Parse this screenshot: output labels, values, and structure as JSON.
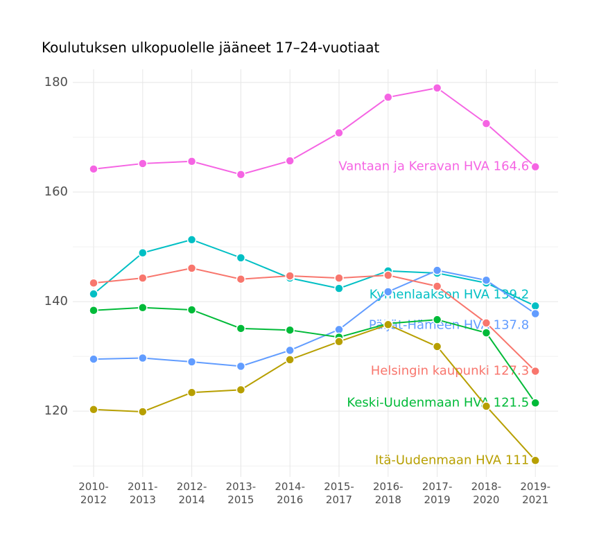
{
  "chart_data": {
    "type": "line",
    "title": "Koulutuksen ulkopuolelle jääneet 17–24-vuotiaat",
    "categories": [
      "2010-\n2012",
      "2011-\n2013",
      "2012-\n2014",
      "2013-\n2015",
      "2014-\n2016",
      "2015-\n2017",
      "2016-\n2018",
      "2017-\n2019",
      "2018-\n2020",
      "2019-\n2021"
    ],
    "series": [
      {
        "name": "Vantaan ja Keravan HVA",
        "color": "#F564E3",
        "values": [
          164.2,
          165.2,
          165.6,
          163.2,
          165.7,
          170.8,
          177.3,
          179.0,
          172.5,
          164.6
        ]
      },
      {
        "name": "Kymenlaakson HVA",
        "color": "#00BFC4",
        "values": [
          141.4,
          148.9,
          151.3,
          148.0,
          144.3,
          142.4,
          145.6,
          145.2,
          143.4,
          139.2
        ]
      },
      {
        "name": "Päijät-Hämeen HVA",
        "color": "#619CFF",
        "values": [
          129.5,
          129.7,
          129.0,
          128.2,
          131.1,
          134.9,
          141.8,
          145.7,
          143.9,
          137.8
        ]
      },
      {
        "name": "Helsingin kaupunki",
        "color": "#F8766D",
        "values": [
          143.4,
          144.3,
          146.1,
          144.1,
          144.7,
          144.3,
          144.8,
          142.8,
          136.1,
          127.3
        ]
      },
      {
        "name": "Keski-Uudenmaan HVA",
        "color": "#00BA38",
        "values": [
          138.4,
          138.9,
          138.5,
          135.1,
          134.8,
          133.5,
          136.0,
          136.7,
          134.3,
          121.5
        ]
      },
      {
        "name": "Itä-Uudenmaan HVA",
        "color": "#B79F00",
        "values": [
          120.3,
          119.9,
          123.4,
          123.9,
          129.4,
          132.7,
          135.8,
          131.8,
          120.9,
          111
        ]
      }
    ],
    "ylim": [
      108,
      182.4
    ],
    "yticks": [
      120,
      140,
      160,
      180
    ],
    "grid": true
  }
}
